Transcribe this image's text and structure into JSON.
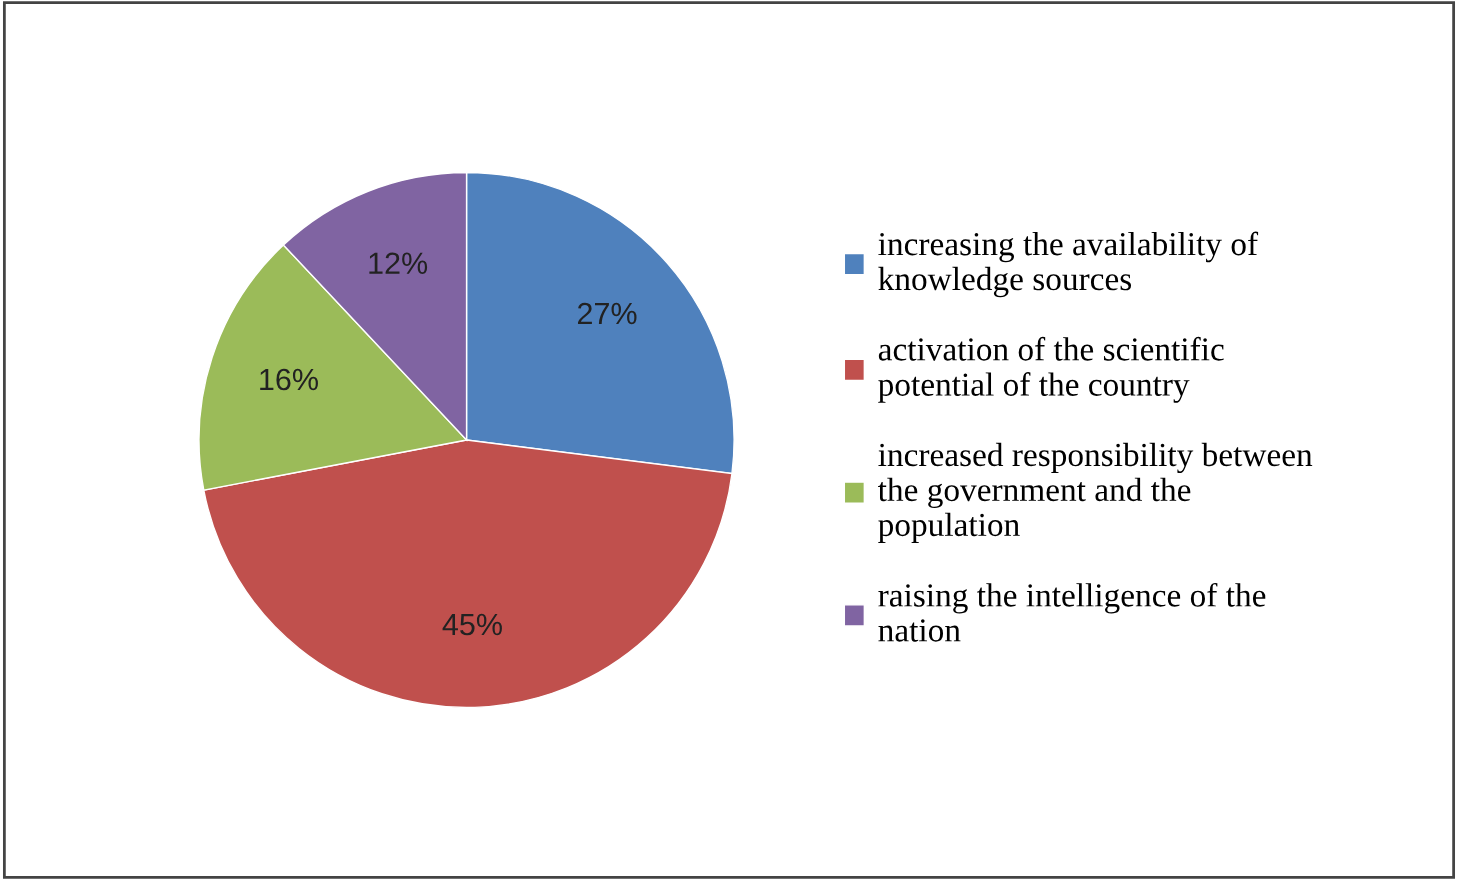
{
  "chart_data": {
    "type": "pie",
    "categories": [
      "increasing the availability of\nknowledge sources",
      "activation of the scientific\npotential of the country",
      "increased responsibility between\nthe government and the\npopulation",
      "raising the intelligence of the\nnation"
    ],
    "values": [
      27,
      45,
      16,
      12
    ],
    "colors": [
      "#4f81bd",
      "#c0504d",
      "#9bbb59",
      "#8064a2"
    ],
    "value_labels": [
      "27%",
      "45%",
      "16%",
      "12%"
    ],
    "legend": "right"
  }
}
